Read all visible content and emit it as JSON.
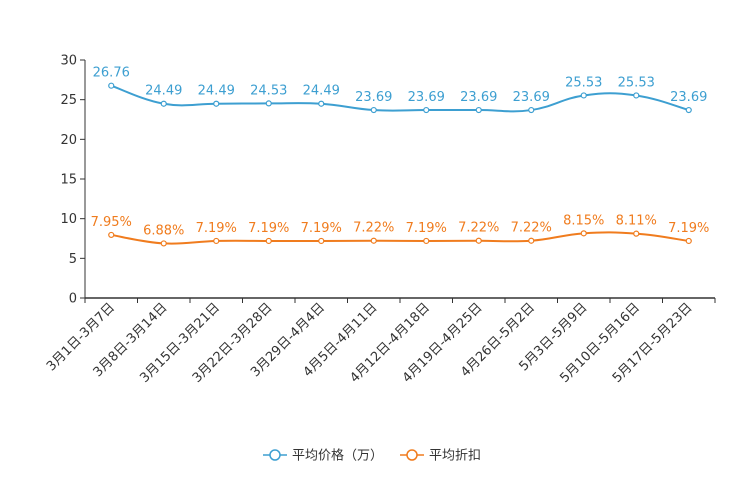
{
  "chart_data": {
    "type": "line",
    "title": "",
    "xlabel": "",
    "ylabel": "",
    "ylim": [
      0,
      30
    ],
    "yticks": [
      0,
      5,
      10,
      15,
      20,
      25,
      30
    ],
    "grid": false,
    "legend_position": "bottom-center",
    "categories": [
      "3月1日-3月7日",
      "3月8日-3月14日",
      "3月15日-3月21日",
      "3月22日-3月28日",
      "3月29日-4月4日",
      "4月5日-4月11日",
      "4月12日-4月18日",
      "4月19日-4月25日",
      "4月26日-5月2日",
      "5月3日-5月9日",
      "5月10日-5月16日",
      "5月17日-5月23日"
    ],
    "series": [
      {
        "name": "平均价格（万）",
        "color": "#3d9fd1",
        "values": [
          26.76,
          24.49,
          24.49,
          24.53,
          24.49,
          23.69,
          23.69,
          23.69,
          23.69,
          25.53,
          25.53,
          23.69
        ],
        "labels": [
          "26.76",
          "24.49",
          "24.49",
          "24.53",
          "24.49",
          "23.69",
          "23.69",
          "23.69",
          "23.69",
          "25.53",
          "25.53",
          "23.69"
        ]
      },
      {
        "name": "平均折扣",
        "color": "#f07c1e",
        "values": [
          7.95,
          6.88,
          7.19,
          7.19,
          7.19,
          7.22,
          7.19,
          7.22,
          7.22,
          8.15,
          8.11,
          7.19
        ],
        "labels": [
          "7.95%",
          "6.88%",
          "7.19%",
          "7.19%",
          "7.19%",
          "7.22%",
          "7.19%",
          "7.22%",
          "7.22%",
          "8.15%",
          "8.11%",
          "7.19%"
        ]
      }
    ]
  }
}
